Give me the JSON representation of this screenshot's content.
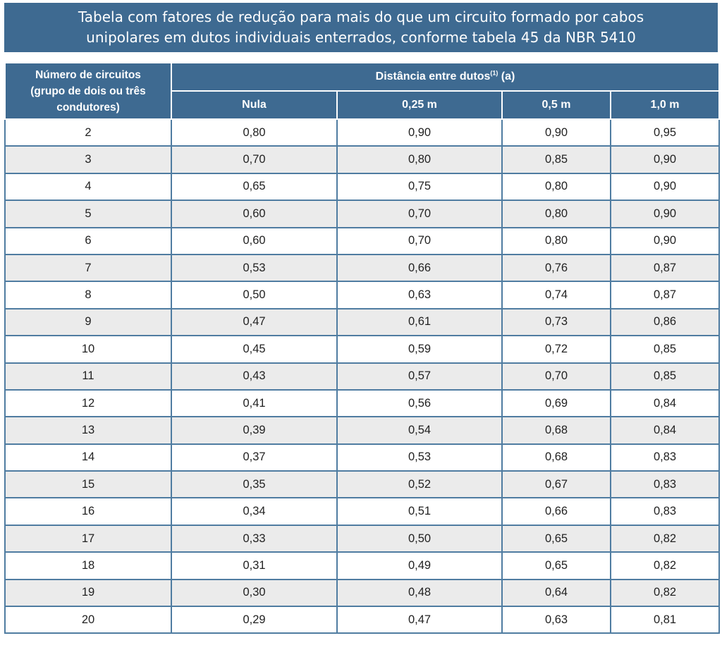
{
  "title": {
    "line1": "Tabela com fatores de redução para mais do que um circuito formado por cabos",
    "line2": "unipolares em dutos individuais enterrados, conforme tabela 45 da NBR 5410"
  },
  "table": {
    "row_header": "Número de circuitos (grupo de dois ou três condutores)",
    "group_header": {
      "label": "Distância entre dutos",
      "sup": "(1)",
      "suffix": " (a)"
    },
    "columns": [
      "Nula",
      "0,25 m",
      "0,5 m",
      "1,0 m"
    ],
    "rows": [
      [
        "2",
        "0,80",
        "0,90",
        "0,90",
        "0,95"
      ],
      [
        "3",
        "0,70",
        "0,80",
        "0,85",
        "0,90"
      ],
      [
        "4",
        "0,65",
        "0,75",
        "0,80",
        "0,90"
      ],
      [
        "5",
        "0,60",
        "0,70",
        "0,80",
        "0,90"
      ],
      [
        "6",
        "0,60",
        "0,70",
        "0,80",
        "0,90"
      ],
      [
        "7",
        "0,53",
        "0,66",
        "0,76",
        "0,87"
      ],
      [
        "8",
        "0,50",
        "0,63",
        "0,74",
        "0,87"
      ],
      [
        "9",
        "0,47",
        "0,61",
        "0,73",
        "0,86"
      ],
      [
        "10",
        "0,45",
        "0,59",
        "0,72",
        "0,85"
      ],
      [
        "11",
        "0,43",
        "0,57",
        "0,70",
        "0,85"
      ],
      [
        "12",
        "0,41",
        "0,56",
        "0,69",
        "0,84"
      ],
      [
        "13",
        "0,39",
        "0,54",
        "0,68",
        "0,84"
      ],
      [
        "14",
        "0,37",
        "0,53",
        "0,68",
        "0,83"
      ],
      [
        "15",
        "0,35",
        "0,52",
        "0,67",
        "0,83"
      ],
      [
        "16",
        "0,34",
        "0,51",
        "0,66",
        "0,83"
      ],
      [
        "17",
        "0,33",
        "0,50",
        "0,65",
        "0,82"
      ],
      [
        "18",
        "0,31",
        "0,49",
        "0,65",
        "0,82"
      ],
      [
        "19",
        "0,30",
        "0,48",
        "0,64",
        "0,82"
      ],
      [
        "20",
        "0,29",
        "0,47",
        "0,63",
        "0,81"
      ]
    ]
  },
  "colors": {
    "header_bg": "#3e6a91",
    "row_alt_bg": "#ebebeb",
    "border": "#4f7ca1"
  }
}
